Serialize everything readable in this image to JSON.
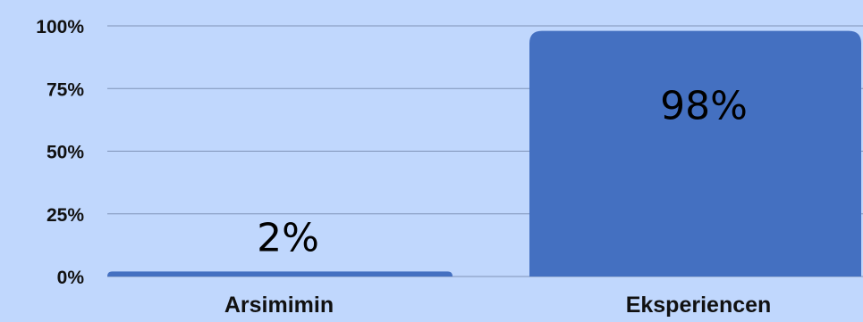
{
  "chart_data": {
    "type": "bar",
    "categories": [
      "Arsimimin",
      "Eksperiencen"
    ],
    "values": [
      2,
      98
    ],
    "data_labels": [
      "2%",
      "98%"
    ],
    "ylim": [
      0,
      100
    ],
    "yticks": [
      0,
      25,
      50,
      75,
      100
    ],
    "ytick_labels": [
      "0%",
      "25%",
      "50%",
      "75%",
      "100%"
    ],
    "grid": true,
    "legend": "none",
    "title": "",
    "xlabel": "",
    "ylabel": "",
    "colors": {
      "background": "#c0d7fd",
      "bar": "#4470c1",
      "grid": "#7f93b8",
      "text": "#111111"
    }
  }
}
